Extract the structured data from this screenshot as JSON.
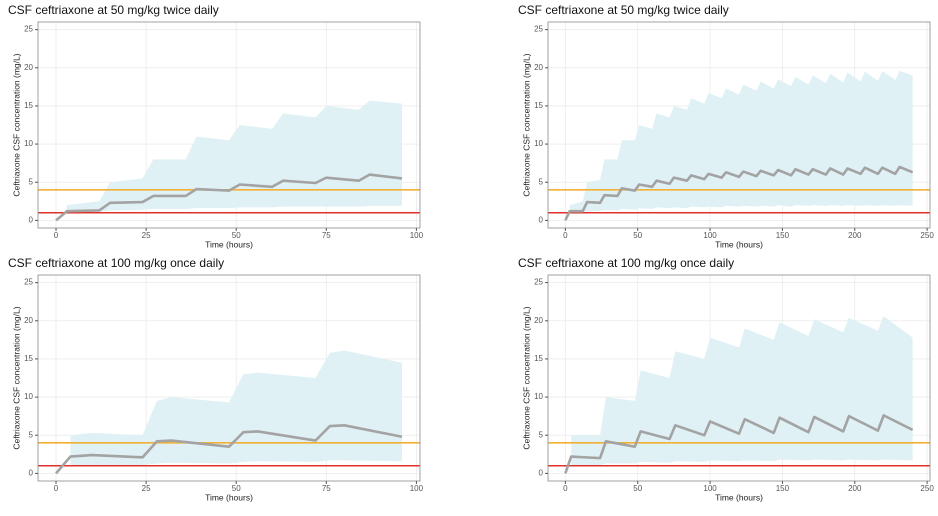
{
  "chart_data": [
    {
      "type": "line",
      "title": "CSF ceftriaxone at 50 mg/kg twice daily",
      "xlabel": "Time (hours)",
      "ylabel": "Ceftriaxone CSF concentration (mg/L)",
      "x": [
        0,
        3,
        12,
        15,
        24,
        27,
        36,
        39,
        48,
        51,
        60,
        63,
        72,
        75,
        84,
        87,
        96
      ],
      "series": [
        {
          "color": "#a3a3a3",
          "values": [
            0,
            1.2,
            1.3,
            2.3,
            2.4,
            3.2,
            3.2,
            4.1,
            3.9,
            4.7,
            4.4,
            5.2,
            4.9,
            5.6,
            5.2,
            6.0,
            5.5
          ]
        }
      ],
      "band": {
        "color": "#e0f1f5",
        "upper": [
          null,
          2,
          2.5,
          5,
          5.5,
          8,
          8,
          11,
          10.5,
          12.5,
          12,
          14,
          13.5,
          15,
          14.5,
          15.7,
          15.3
        ],
        "lower": [
          null,
          1.0,
          1.1,
          1.3,
          1.4,
          1.5,
          1.5,
          1.6,
          1.6,
          1.7,
          1.7,
          1.8,
          1.8,
          1.8,
          1.8,
          1.9,
          1.9
        ]
      },
      "hlines": [
        {
          "value": 4,
          "color": "#f2b134"
        },
        {
          "value": 1,
          "color": "#e0302a"
        }
      ],
      "xlim": [
        -5,
        101
      ],
      "xticks": [
        0,
        25,
        50,
        75,
        100
      ],
      "ylim": [
        -1,
        26
      ],
      "yticks": [
        0,
        5,
        10,
        15,
        20,
        25
      ],
      "grid": true
    },
    {
      "type": "line",
      "title": "CSF ceftriaxone at 50 mg/kg twice daily",
      "xlabel": "Time (hours)",
      "ylabel": "Ceftriaxone CSF concentration (mg/L)",
      "x": [
        0,
        3,
        12,
        15,
        24,
        27,
        36,
        39,
        48,
        51,
        60,
        63,
        72,
        75,
        84,
        87,
        96,
        99,
        108,
        111,
        120,
        123,
        132,
        135,
        144,
        147,
        156,
        159,
        168,
        171,
        180,
        183,
        192,
        195,
        204,
        207,
        216,
        219,
        228,
        231,
        240
      ],
      "series": [
        {
          "color": "#a3a3a3",
          "values": [
            0,
            1.2,
            1.2,
            2.4,
            2.3,
            3.3,
            3.2,
            4.2,
            3.9,
            4.7,
            4.4,
            5.2,
            4.8,
            5.6,
            5.2,
            5.9,
            5.4,
            6.1,
            5.6,
            6.3,
            5.7,
            6.4,
            5.8,
            6.5,
            5.9,
            6.6,
            5.9,
            6.7,
            6.0,
            6.7,
            6.0,
            6.8,
            6.0,
            6.8,
            6.1,
            6.9,
            6.1,
            6.9,
            6.1,
            7.0,
            6.3
          ]
        }
      ],
      "band": {
        "color": "#e0f1f5",
        "upper": [
          null,
          2,
          2.5,
          5,
          5.3,
          8,
          8,
          10.5,
          10.5,
          12.5,
          12,
          14,
          13.5,
          15,
          14.5,
          16,
          15.3,
          16.7,
          16,
          17.3,
          16.5,
          17.8,
          17,
          18.2,
          17.3,
          18.5,
          17.6,
          18.8,
          17.8,
          19,
          18,
          19.2,
          18.1,
          19.4,
          18.2,
          19.5,
          18.3,
          19.6,
          18.4,
          19.6,
          19
        ],
        "lower": [
          null,
          1.0,
          1.0,
          1.2,
          1.2,
          1.4,
          1.3,
          1.5,
          1.4,
          1.6,
          1.5,
          1.7,
          1.6,
          1.7,
          1.6,
          1.8,
          1.7,
          1.8,
          1.7,
          1.9,
          1.8,
          1.9,
          1.8,
          1.9,
          1.8,
          2.0,
          1.8,
          2.0,
          1.9,
          2.0,
          1.9,
          2.0,
          1.9,
          2.0,
          1.9,
          2.0,
          1.9,
          2.0,
          1.9,
          2.0,
          1.9
        ]
      },
      "hlines": [
        {
          "value": 4,
          "color": "#f2b134"
        },
        {
          "value": 1,
          "color": "#e0302a"
        }
      ],
      "xlim": [
        -12,
        252
      ],
      "xticks": [
        0,
        50,
        100,
        150,
        200,
        250
      ],
      "ylim": [
        -1,
        26
      ],
      "yticks": [
        0,
        5,
        10,
        15,
        20,
        25
      ],
      "grid": true
    },
    {
      "type": "line",
      "title": "CSF ceftriaxone at 100 mg/kg once daily",
      "xlabel": "Time (hours)",
      "ylabel": "Ceftriaxone CSF concentration (mg/L)",
      "x": [
        0,
        4,
        10,
        24,
        28,
        32,
        48,
        52,
        56,
        72,
        76,
        80,
        96
      ],
      "series": [
        {
          "color": "#a3a3a3",
          "values": [
            0,
            2.2,
            2.4,
            2.1,
            4.2,
            4.3,
            3.5,
            5.4,
            5.5,
            4.3,
            6.2,
            6.3,
            4.8
          ]
        }
      ],
      "band": {
        "color": "#e0f1f5",
        "upper": [
          null,
          5,
          5.3,
          5.0,
          9.5,
          10,
          9.3,
          13,
          13.2,
          12.5,
          15.8,
          16.1,
          14.5
        ],
        "lower": [
          null,
          1.0,
          1.1,
          1.1,
          1.3,
          1.4,
          1.3,
          1.5,
          1.6,
          1.5,
          1.7,
          1.7,
          1.6
        ]
      },
      "hlines": [
        {
          "value": 4,
          "color": "#f2b134"
        },
        {
          "value": 1,
          "color": "#e0302a"
        }
      ],
      "xlim": [
        -5,
        101
      ],
      "xticks": [
        0,
        25,
        50,
        75,
        100
      ],
      "ylim": [
        -1,
        26
      ],
      "yticks": [
        0,
        5,
        10,
        15,
        20,
        25
      ],
      "grid": true
    },
    {
      "type": "line",
      "title": "CSF ceftriaxone at 100 mg/kg once daily",
      "xlabel": "Time (hours)",
      "ylabel": "Ceftriaxone CSF concentration (mg/L)",
      "x": [
        0,
        4,
        24,
        28,
        48,
        52,
        72,
        76,
        96,
        100,
        120,
        124,
        144,
        148,
        168,
        172,
        192,
        196,
        216,
        220,
        240
      ],
      "series": [
        {
          "color": "#a3a3a3",
          "values": [
            0,
            2.2,
            2.0,
            4.2,
            3.5,
            5.5,
            4.5,
            6.3,
            5.0,
            6.8,
            5.2,
            7.1,
            5.3,
            7.3,
            5.4,
            7.4,
            5.5,
            7.5,
            5.6,
            7.6,
            5.7
          ]
        }
      ],
      "band": {
        "color": "#e0f1f5",
        "upper": [
          null,
          5,
          5,
          10,
          9.5,
          13.5,
          12.5,
          16,
          15,
          17.8,
          16.5,
          19,
          17.5,
          19.8,
          18,
          20.2,
          18.5,
          20.4,
          18.7,
          20.6,
          17.8
        ],
        "lower": [
          null,
          1.0,
          1.1,
          1.3,
          1.3,
          1.5,
          1.4,
          1.6,
          1.5,
          1.7,
          1.6,
          1.7,
          1.6,
          1.8,
          1.7,
          1.8,
          1.7,
          1.8,
          1.7,
          1.8,
          1.7
        ]
      },
      "hlines": [
        {
          "value": 4,
          "color": "#f2b134"
        },
        {
          "value": 1,
          "color": "#e0302a"
        }
      ],
      "xlim": [
        -12,
        252
      ],
      "xticks": [
        0,
        50,
        100,
        150,
        200,
        250
      ],
      "ylim": [
        -1,
        26
      ],
      "yticks": [
        0,
        5,
        10,
        15,
        20,
        25
      ],
      "grid": true
    }
  ]
}
